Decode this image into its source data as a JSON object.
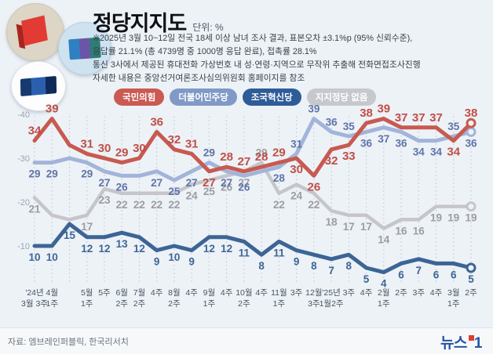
{
  "header": {
    "title": "정당지지도",
    "unit": "단위: %",
    "notes": [
      "※2025년 3월 10~12일 전국 18세 이상 남녀 조사 결과, 표본오차 ±3.1%p (95% 신뢰수준),",
      "응답률 21.1% (총 4739명 중 1000명 응답 완료), 접촉률 28.1%",
      "통신 3사에서 제공된 휴대전화 가상번호 내 성·연령·지역으로 무작위 추출해 전화면접조사진행",
      "자세한 내용은 중앙선거여론조사심의위원회 홈페이지를 참조"
    ]
  },
  "footer": {
    "source": "자료: 엠브레인퍼블릭, 한국리서치",
    "brand_text": "뉴스",
    "brand_number": "1"
  },
  "chart_data": {
    "type": "line",
    "title": "정당지지도",
    "ylabel": "%",
    "ylim": [
      0,
      45
    ],
    "grid": "vertical-dotted",
    "grid_color": "#c5cedb",
    "legend_position": "top",
    "y_ticks": [
      "-40",
      "-30",
      "-20",
      "-10"
    ],
    "y_tick_values": [
      40,
      30,
      20,
      10
    ],
    "x_labels": [
      [
        "'24년",
        "3월 3주"
      ],
      [
        "4월",
        "1주"
      ],
      [
        "",
        ""
      ],
      [
        "5월",
        "1주"
      ],
      [
        "5주",
        ""
      ],
      [
        "6월",
        "2주"
      ],
      [
        "7월",
        "2주"
      ],
      [
        "4주",
        ""
      ],
      [
        "8월",
        "2주"
      ],
      [
        "4주",
        ""
      ],
      [
        "9월",
        "1주"
      ],
      [
        "4주",
        ""
      ],
      [
        "10월",
        "2주"
      ],
      [
        "4주",
        ""
      ],
      [
        "11월",
        "1주"
      ],
      [
        "3주",
        ""
      ],
      [
        "12월",
        "3주"
      ],
      [
        "'25년",
        "1월2주"
      ],
      [
        "3주",
        ""
      ],
      [
        "4주",
        ""
      ],
      [
        "2월",
        "1주"
      ],
      [
        "2주",
        ""
      ],
      [
        "3주",
        ""
      ],
      [
        "4주",
        ""
      ],
      [
        "3월",
        "1주"
      ],
      [
        "2주",
        ""
      ]
    ],
    "series": [
      {
        "key": "red",
        "name": "국민의힘",
        "color": "#c75a50",
        "label_color": "#c04f47",
        "width": 5,
        "values": [
          34,
          39,
          33,
          31,
          30,
          29,
          30,
          36,
          32,
          31,
          27,
          28,
          27,
          28,
          29,
          30,
          26,
          32,
          33,
          38,
          39,
          37,
          37,
          37,
          34,
          38
        ],
        "hide_labels": [
          2
        ]
      },
      {
        "key": "blue",
        "name": "더불어민주당",
        "color": "#a2b4d9",
        "label_color": "#5f74a8",
        "width": 5,
        "values": [
          29,
          29,
          30,
          29,
          27,
          26,
          26,
          27,
          25,
          27,
          29,
          27,
          26,
          27,
          28,
          31,
          39,
          36,
          35,
          36,
          37,
          36,
          34,
          34,
          35,
          36
        ],
        "hide_labels": [
          2,
          6,
          13
        ]
      },
      {
        "key": "navy",
        "name": "조국혁신당",
        "color": "#3c6595",
        "label_color": "#3e6697",
        "width": 5,
        "values": [
          10,
          10,
          15,
          12,
          12,
          13,
          12,
          9,
          10,
          9,
          12,
          12,
          11,
          8,
          11,
          9,
          8,
          7,
          8,
          5,
          4,
          6,
          7,
          6,
          6,
          5
        ],
        "hide_labels": []
      },
      {
        "key": "gray",
        "name": "지지정당 없음",
        "color": "#c6c6ca",
        "label_color": "#9c9da3",
        "width": 4.5,
        "values": [
          21,
          17,
          16,
          17,
          23,
          22,
          22,
          22,
          22,
          24,
          25,
          26,
          27,
          29,
          22,
          24,
          22,
          18,
          17,
          17,
          14,
          16,
          16,
          19,
          19,
          19
        ],
        "hide_labels": [
          1,
          2
        ]
      }
    ],
    "pill_colors": [
      "#cb5a52",
      "#8199c7",
      "#2e5c98",
      "#c6c8cd"
    ],
    "draw_order": [
      3,
      1,
      0,
      2
    ]
  }
}
